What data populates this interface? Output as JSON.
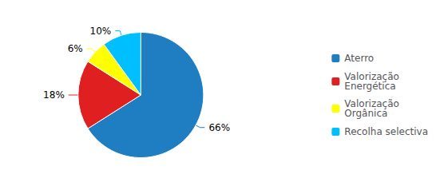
{
  "chart_data": {
    "type": "pie",
    "categories": [
      "Aterro",
      "Valorização\nEnergética",
      "Valorização\nOrgânica",
      "Recolha selectiva"
    ],
    "values": [
      66,
      18,
      6,
      10
    ],
    "value_labels": [
      "66%",
      "18%",
      "6%",
      "10%"
    ],
    "colors": [
      "#1F7EC2",
      "#E02020",
      "#FFFF00",
      "#00BFFF"
    ],
    "data_labels": true,
    "legend": "right"
  }
}
